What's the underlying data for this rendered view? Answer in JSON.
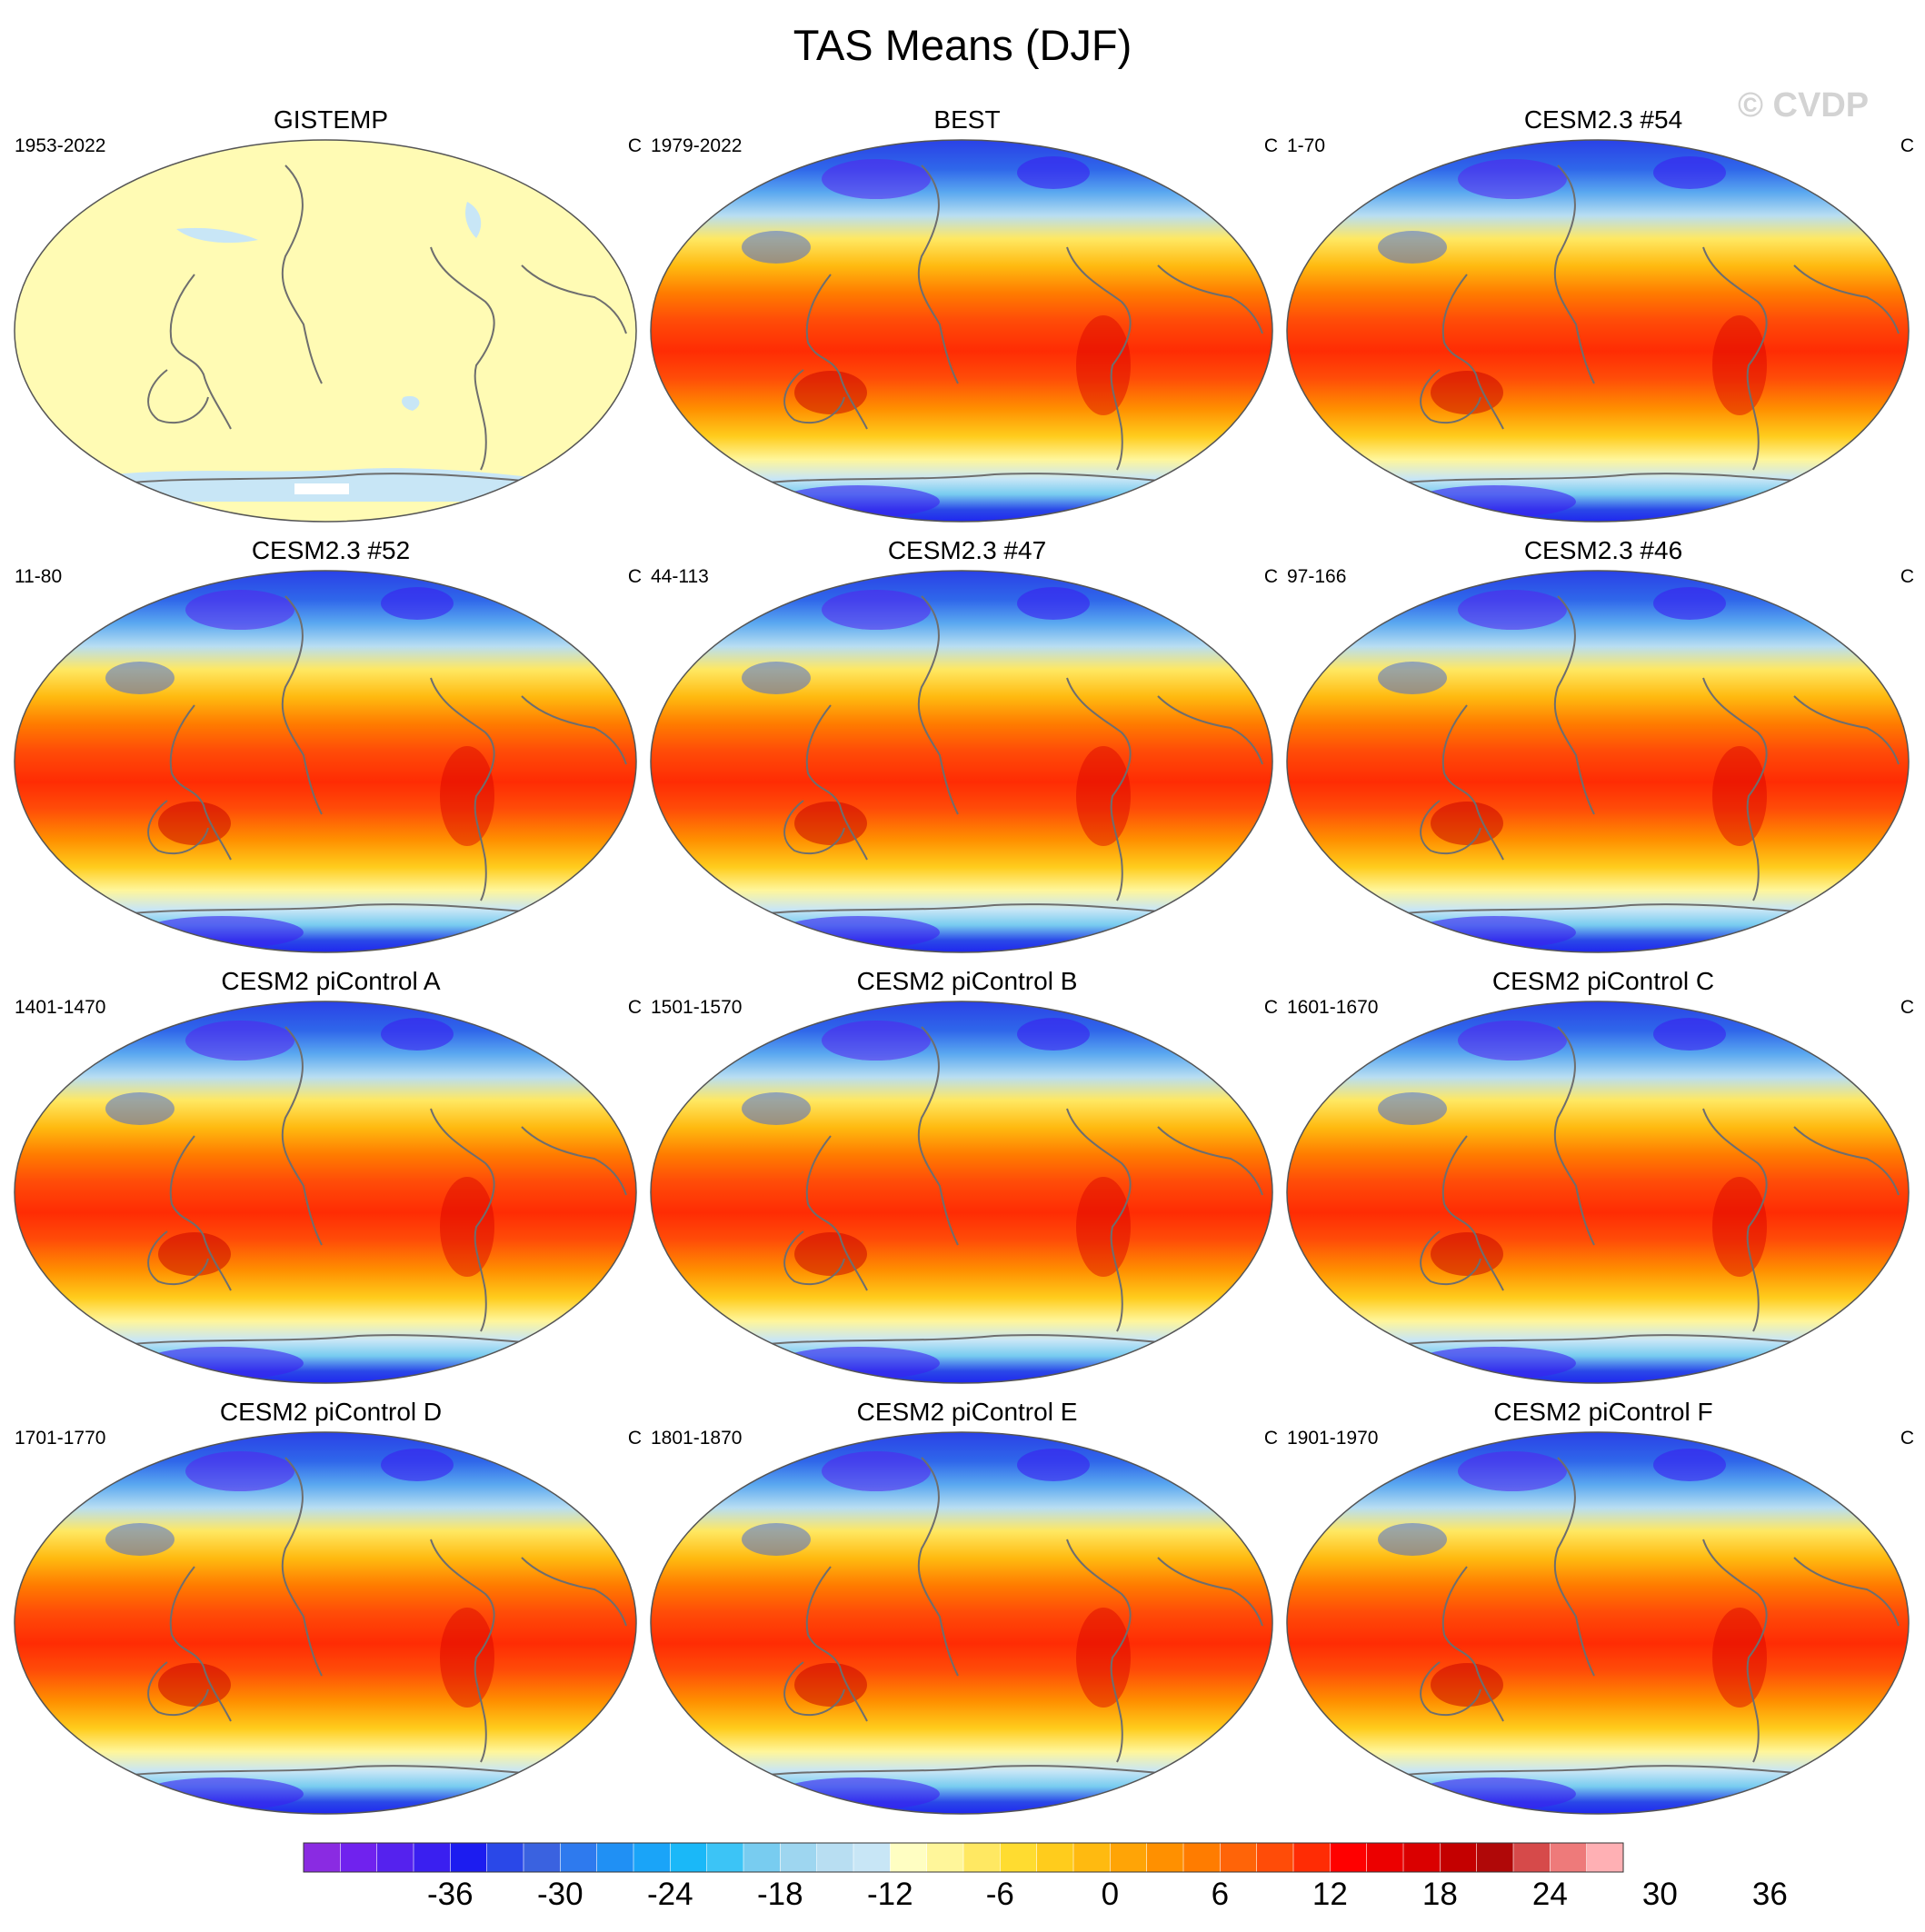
{
  "title": "TAS Means (DJF)",
  "watermark": "© CVDP",
  "units": "C",
  "panels": [
    {
      "name": "GISTEMP",
      "period": "1953-2022",
      "style": "obs-sparse"
    },
    {
      "name": "BEST",
      "period": "1979-2022",
      "style": "full"
    },
    {
      "name": "CESM2.3 #54",
      "period": "1-70",
      "style": "full"
    },
    {
      "name": "CESM2.3 #52",
      "period": "11-80",
      "style": "full"
    },
    {
      "name": "CESM2.3 #47",
      "period": "44-113",
      "style": "full"
    },
    {
      "name": "CESM2.3 #46",
      "period": "97-166",
      "style": "full"
    },
    {
      "name": "CESM2 piControl A",
      "period": "1401-1470",
      "style": "full"
    },
    {
      "name": "CESM2 piControl B",
      "period": "1501-1570",
      "style": "full"
    },
    {
      "name": "CESM2 piControl C",
      "period": "1601-1670",
      "style": "full"
    },
    {
      "name": "CESM2 piControl D",
      "period": "1701-1770",
      "style": "full"
    },
    {
      "name": "CESM2 piControl E",
      "period": "1801-1870",
      "style": "full"
    },
    {
      "name": "CESM2 piControl F",
      "period": "1901-1970",
      "style": "full"
    }
  ],
  "colorbar": {
    "labels": [
      "-36",
      "-30",
      "-24",
      "-18",
      "-12",
      "-6",
      "0",
      "6",
      "12",
      "18",
      "24",
      "30",
      "36"
    ],
    "colors": [
      "#8a2be2",
      "#7022ee",
      "#5522ee",
      "#3a1ff0",
      "#1c1cf0",
      "#2a48e8",
      "#3a62e0",
      "#2e7aee",
      "#2090f4",
      "#1aa4f8",
      "#1ab8f8",
      "#3cc4f6",
      "#78ccf0",
      "#9ed6f0",
      "#b8def2",
      "#c8e6f6",
      "#fffec2",
      "#fff69a",
      "#ffe862",
      "#ffdc30",
      "#ffcc1c",
      "#ffba10",
      "#ffa406",
      "#ff9000",
      "#ff7c00",
      "#ff6408",
      "#ff4c08",
      "#ff2c04",
      "#ff0000",
      "#ec0000",
      "#da0000",
      "#c40000",
      "#b00808",
      "#d64a4a",
      "#ee7a7a",
      "#ffb0b4"
    ]
  }
}
